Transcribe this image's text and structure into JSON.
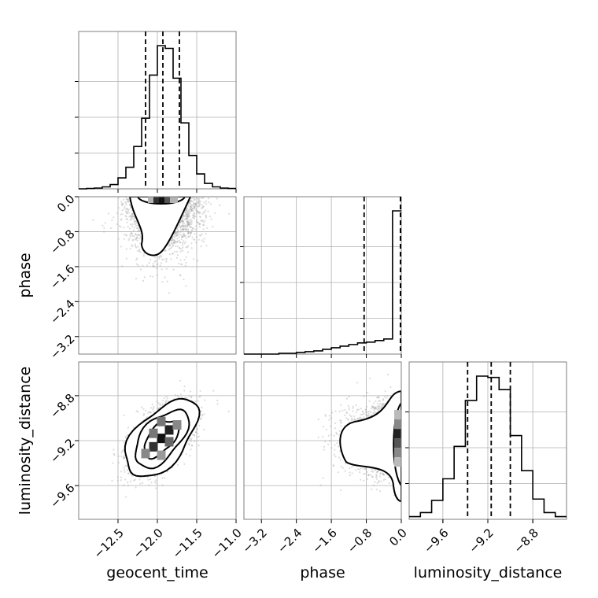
{
  "chart_data": {
    "type": "corner",
    "parameters": [
      "geocent_time",
      "phase",
      "luminosity_distance"
    ],
    "axes": {
      "geocent_time": {
        "label": "geocent_time",
        "range": [
          -13.0,
          -11.0
        ],
        "ticks": [
          -12.5,
          -12.0,
          -11.5,
          -11.0
        ],
        "tick_labels": [
          "−12.5",
          "−12.0",
          "−11.5",
          "−11.0"
        ],
        "quantiles": [
          -12.15,
          -11.93,
          -11.72
        ]
      },
      "phase": {
        "label": "phase",
        "range": [
          -3.6,
          0.0
        ],
        "ticks": [
          -3.2,
          -2.4,
          -1.6,
          -0.8,
          0.0
        ],
        "tick_labels": [
          "−3.2",
          "−2.4",
          "−1.6",
          "−0.8",
          "0.0"
        ],
        "quantiles": [
          -0.85,
          -0.02,
          0.0
        ]
      },
      "luminosity_distance": {
        "label": "luminosity_distance",
        "range": [
          -9.9,
          -8.5
        ],
        "ticks": [
          -9.6,
          -9.2,
          -8.8
        ],
        "tick_labels": [
          "−9.6",
          "−9.2",
          "−8.8"
        ],
        "quantiles": [
          -9.38,
          -9.17,
          -9.0
        ]
      }
    },
    "histograms": {
      "geocent_time": {
        "bin_edges": [
          -13.0,
          -12.9,
          -12.8,
          -12.7,
          -12.6,
          -12.5,
          -12.4,
          -12.3,
          -12.2,
          -12.1,
          -12.0,
          -11.9,
          -11.8,
          -11.7,
          -11.6,
          -11.5,
          -11.4,
          -11.3,
          -11.2,
          -11.1,
          -11.0
        ],
        "counts": [
          0,
          1,
          2,
          5,
          11,
          28,
          55,
          108,
          180,
          290,
          365,
          358,
          282,
          168,
          85,
          38,
          14,
          5,
          2,
          1
        ]
      },
      "phase": {
        "bin_edges": [
          -3.6,
          -3.4,
          -3.2,
          -3.0,
          -2.8,
          -2.6,
          -2.4,
          -2.2,
          -2.0,
          -1.8,
          -1.6,
          -1.4,
          -1.2,
          -1.0,
          -0.8,
          -0.6,
          -0.4,
          -0.2,
          0.0
        ],
        "counts": [
          0,
          0,
          0,
          0,
          1,
          1,
          2,
          3,
          4,
          6,
          8,
          10,
          12,
          14,
          15,
          17,
          19,
          180
        ]
      },
      "luminosity_distance": {
        "bin_edges": [
          -9.9,
          -9.8,
          -9.7,
          -9.6,
          -9.5,
          -9.4,
          -9.3,
          -9.2,
          -9.1,
          -9.0,
          -8.9,
          -8.8,
          -8.7,
          -8.6,
          -8.5
        ],
        "counts": [
          2,
          5,
          14,
          30,
          54,
          88,
          106,
          105,
          96,
          62,
          36,
          15,
          5,
          2
        ]
      }
    },
    "density_2d": {
      "geocent_time_vs_phase": {
        "center": [
          -11.93,
          0.0
        ],
        "spread": [
          0.22,
          0.45
        ],
        "correlation": 0.0
      },
      "geocent_time_vs_luminosity_distance": {
        "center": [
          -11.95,
          -9.18
        ],
        "spread": [
          0.2,
          0.15
        ],
        "correlation": 0.55
      },
      "phase_vs_luminosity_distance": {
        "center": [
          0.0,
          -9.18
        ],
        "spread": [
          0.45,
          0.15
        ],
        "correlation": 0.0
      }
    },
    "grid": true
  }
}
